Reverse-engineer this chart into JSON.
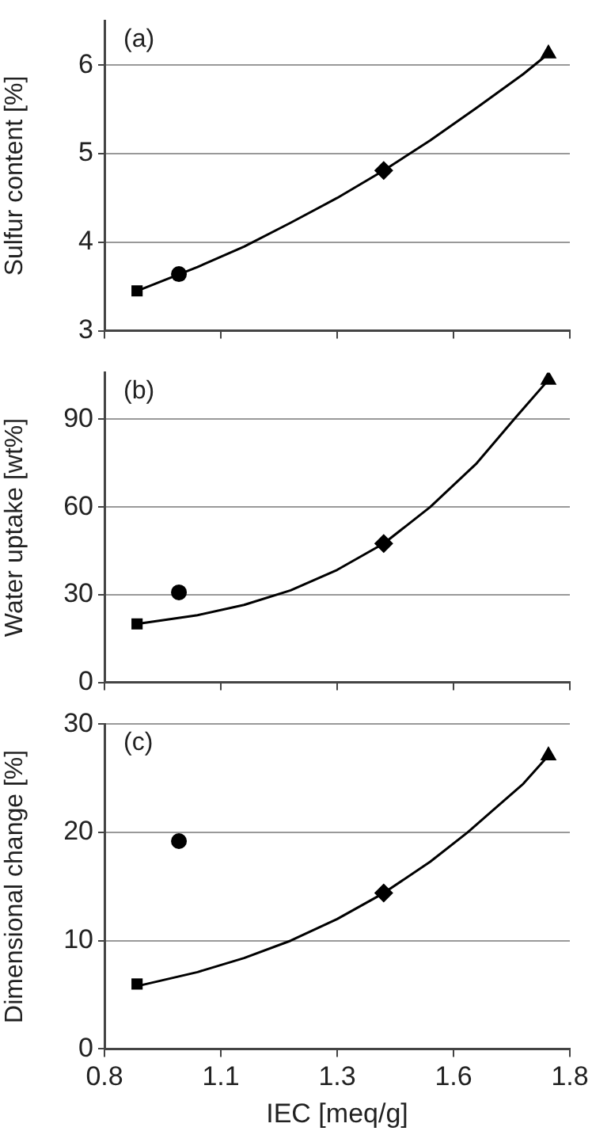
{
  "chart_data": [
    {
      "type": "scatter",
      "ylabel": "Sulfur content [%]",
      "annotations": [
        "(a)"
      ],
      "xlim": [
        0.8,
        1.8
      ],
      "xticks": [
        {
          "value": 0.8,
          "label": null
        },
        {
          "value": 1.05,
          "label": null
        },
        {
          "value": 1.3,
          "label": null
        },
        {
          "value": 1.55,
          "label": null
        },
        {
          "value": 1.8,
          "label": null
        }
      ],
      "ylim": [
        3,
        6.5
      ],
      "yticks": [
        3,
        4,
        5,
        6
      ],
      "grid": "y",
      "tick_labels": "y",
      "series": [
        {
          "color": "#000000",
          "marker": "square",
          "x": [
            0.87
          ],
          "values": [
            3.45
          ]
        },
        {
          "color": "#000000",
          "marker": "circle",
          "x": [
            0.96
          ],
          "values": [
            3.64
          ]
        },
        {
          "color": "#000000",
          "marker": "diamond",
          "x": [
            1.4
          ],
          "values": [
            4.81
          ]
        },
        {
          "color": "#000000",
          "marker": "triangle",
          "x": [
            1.754
          ],
          "values": [
            6.13
          ]
        },
        {
          "type": "line",
          "color": "#000000",
          "marker": "none",
          "x": [
            0.87,
            1.0,
            1.1,
            1.2,
            1.3,
            1.4,
            1.5,
            1.6,
            1.7,
            1.754
          ],
          "values": [
            3.45,
            3.72,
            3.95,
            4.22,
            4.5,
            4.81,
            5.15,
            5.52,
            5.9,
            6.13
          ]
        }
      ]
    },
    {
      "type": "scatter",
      "ylabel": "Water uptake [wt%]",
      "annotations": [
        "(b)"
      ],
      "xlim": [
        0.8,
        1.8
      ],
      "xticks": [
        {
          "value": 0.8,
          "label": null
        },
        {
          "value": 1.05,
          "label": null
        },
        {
          "value": 1.3,
          "label": null
        },
        {
          "value": 1.55,
          "label": null
        },
        {
          "value": 1.8,
          "label": null
        }
      ],
      "ylim": [
        0,
        106
      ],
      "yticks": [
        0,
        30,
        60,
        90
      ],
      "grid": "y",
      "tick_labels": "y",
      "series": [
        {
          "color": "#000000",
          "marker": "square",
          "x": [
            0.87
          ],
          "values": [
            20
          ]
        },
        {
          "color": "#000000",
          "marker": "circle",
          "x": [
            0.96
          ],
          "values": [
            30.8
          ]
        },
        {
          "color": "#000000",
          "marker": "diamond",
          "x": [
            1.4
          ],
          "values": [
            47.5
          ]
        },
        {
          "color": "#000000",
          "marker": "triangle",
          "x": [
            1.754
          ],
          "values": [
            103.5
          ]
        },
        {
          "type": "line",
          "color": "#000000",
          "marker": "none",
          "x": [
            0.87,
            1.0,
            1.1,
            1.2,
            1.3,
            1.4,
            1.5,
            1.6,
            1.68,
            1.754
          ],
          "values": [
            20,
            23,
            26.5,
            31.5,
            38.5,
            47.5,
            60,
            75,
            90,
            103.5
          ]
        }
      ]
    },
    {
      "type": "scatter",
      "xlabel": "IEC [meq/g]",
      "ylabel": "Dimensional change [%]",
      "annotations": [
        "(c)"
      ],
      "xlim": [
        0.8,
        1.8
      ],
      "xticks": [
        0.8,
        {
          "value": 1.05,
          "label": "1.1"
        },
        1.3,
        {
          "value": 1.55,
          "label": "1.6"
        },
        1.8
      ],
      "ylim": [
        0,
        30
      ],
      "yticks": [
        0,
        10,
        20,
        30
      ],
      "grid": "y",
      "series": [
        {
          "color": "#000000",
          "marker": "square",
          "x": [
            0.87
          ],
          "values": [
            6
          ]
        },
        {
          "color": "#000000",
          "marker": "circle",
          "x": [
            0.96
          ],
          "values": [
            19.2
          ]
        },
        {
          "color": "#000000",
          "marker": "diamond",
          "x": [
            1.4
          ],
          "values": [
            14.4
          ]
        },
        {
          "color": "#000000",
          "marker": "triangle",
          "x": [
            1.754
          ],
          "values": [
            27.1
          ]
        },
        {
          "type": "line",
          "color": "#000000",
          "marker": "none",
          "x": [
            0.87,
            1.0,
            1.1,
            1.2,
            1.3,
            1.4,
            1.5,
            1.58,
            1.7,
            1.754
          ],
          "values": [
            5.8,
            7.1,
            8.4,
            10,
            12,
            14.4,
            17.3,
            20,
            24.5,
            27.1
          ]
        }
      ]
    }
  ]
}
